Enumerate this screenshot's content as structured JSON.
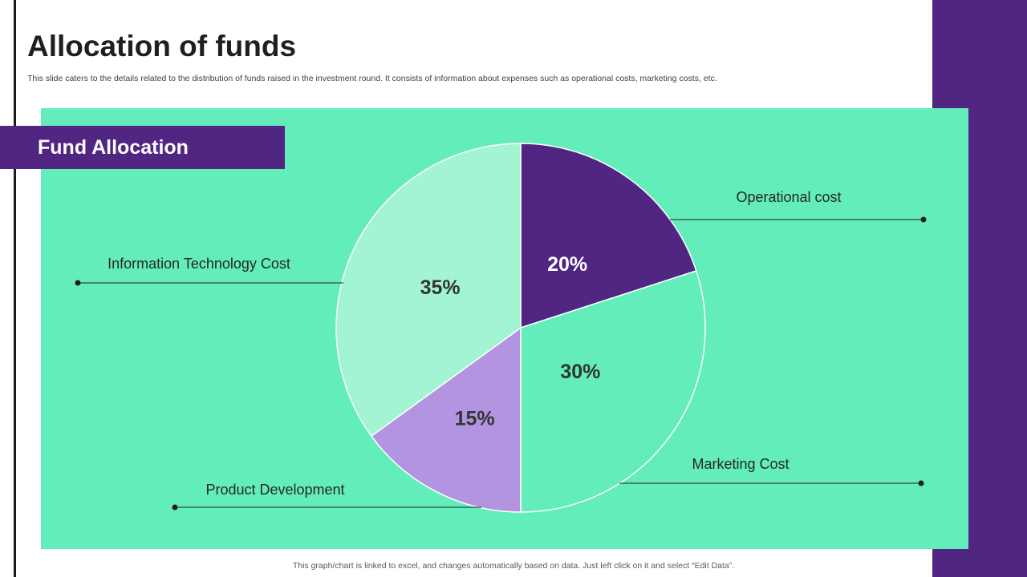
{
  "page": {
    "title": "Allocation of funds",
    "subtitle": "This slide caters to the details related to the distribution of funds raised in the investment round. It consists of information about expenses such as operational costs, marketing costs, etc.",
    "banner_label": "Fund Allocation",
    "footer_note": "This graph/chart is linked to excel,  and changes automatically based on data. Just left click on it and select “Edit Data”."
  },
  "colors": {
    "accent_purple": "#512683",
    "panel_green": "#63EDBB",
    "light_green": "#A2F4D3",
    "lavender": "#B294E0",
    "label_dark": "#333333",
    "label_light": "#ffffff"
  },
  "chart_data": {
    "type": "pie",
    "start_angle": 0,
    "direction": "clockwise",
    "slices": [
      {
        "name": "Operational cost",
        "value": 20,
        "label": "20%",
        "color": "#512683"
      },
      {
        "name": "Marketing Cost",
        "value": 30,
        "label": "30%",
        "color": "#63EDBB"
      },
      {
        "name": "Product Development",
        "value": 15,
        "label": "15%",
        "color": "#B294E0"
      },
      {
        "name": "Information Technology Cost",
        "value": 35,
        "label": "35%",
        "color": "#A2F4D3"
      }
    ]
  }
}
